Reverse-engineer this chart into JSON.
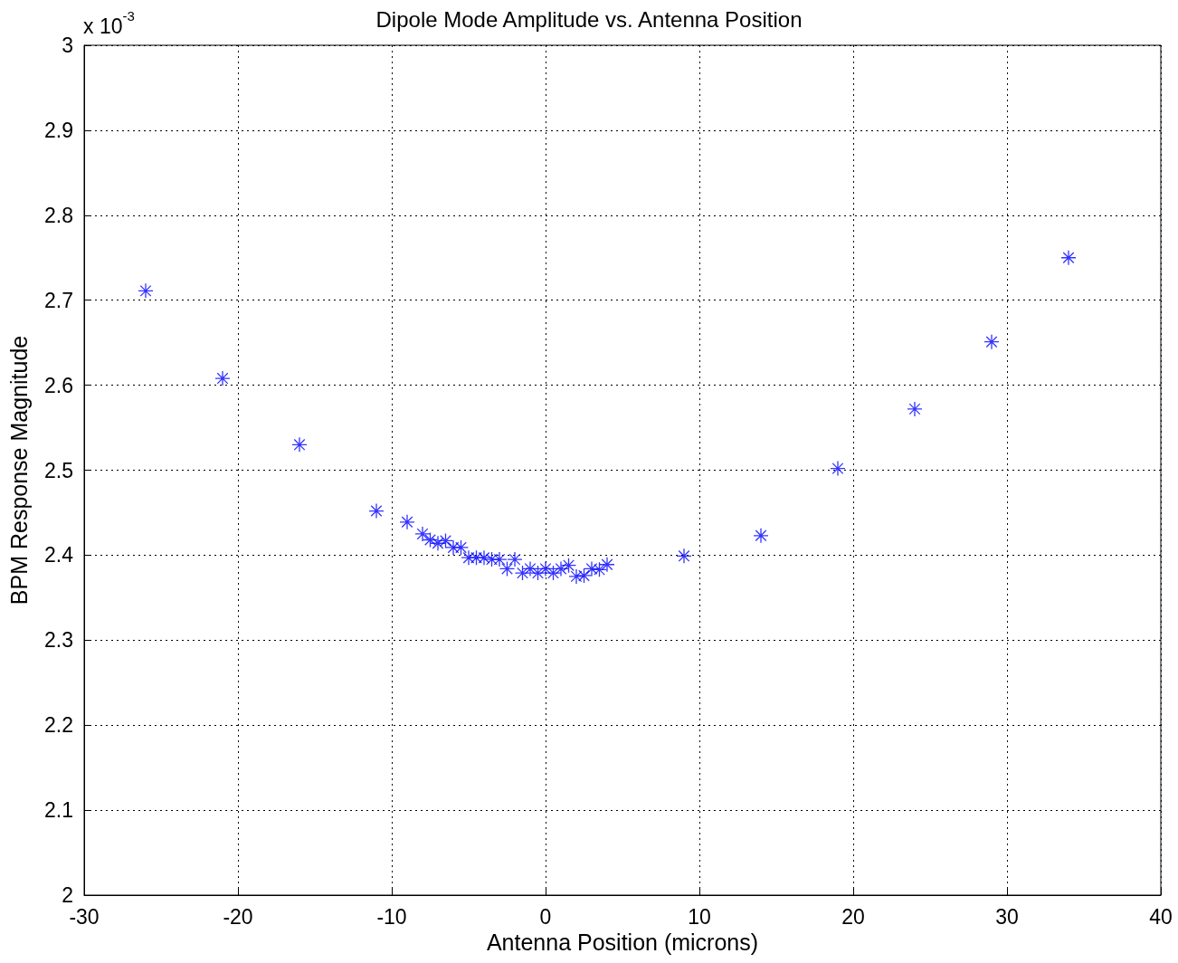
{
  "chart_data": {
    "type": "scatter",
    "title": "Dipole Mode Amplitude vs. Antenna Position",
    "xlabel": "Antenna Position (microns)",
    "ylabel": "BPM Response Magnitude",
    "annotations": [
      "x 10$^{-3}$"
    ],
    "series": [
      {
        "color": "#0000ff",
        "x": [
          -26,
          -21,
          -16,
          -11,
          -9,
          -8,
          -7.5,
          -7,
          -6.5,
          -6,
          -5.5,
          -5,
          -4.5,
          -4,
          -3.5,
          -3,
          -2.5,
          -2,
          -1.5,
          -1,
          -0.5,
          0,
          0.5,
          1,
          1.5,
          2,
          2.5,
          3,
          3.5,
          4,
          9,
          14,
          19,
          24,
          29,
          34
        ],
        "values": [
          2.711,
          2.608,
          2.53,
          2.452,
          2.439,
          2.425,
          2.418,
          2.414,
          2.417,
          2.409,
          2.409,
          2.397,
          2.397,
          2.397,
          2.395,
          2.395,
          2.384,
          2.395,
          2.379,
          2.384,
          2.379,
          2.384,
          2.379,
          2.384,
          2.388,
          2.375,
          2.376,
          2.384,
          2.383,
          2.389,
          2.399,
          2.423,
          2.502,
          2.572,
          2.651,
          2.75
        ]
      }
    ],
    "xlim": [
      -30,
      40
    ],
    "xticks": [
      -30,
      -20,
      -10,
      0,
      10,
      20,
      30,
      40
    ],
    "ylim": [
      2,
      3
    ],
    "yticks": [
      2,
      2.1,
      2.2,
      2.3,
      2.4,
      2.5,
      2.6,
      2.7,
      2.8,
      2.9,
      3
    ],
    "grid": true,
    "marker": "cross"
  }
}
